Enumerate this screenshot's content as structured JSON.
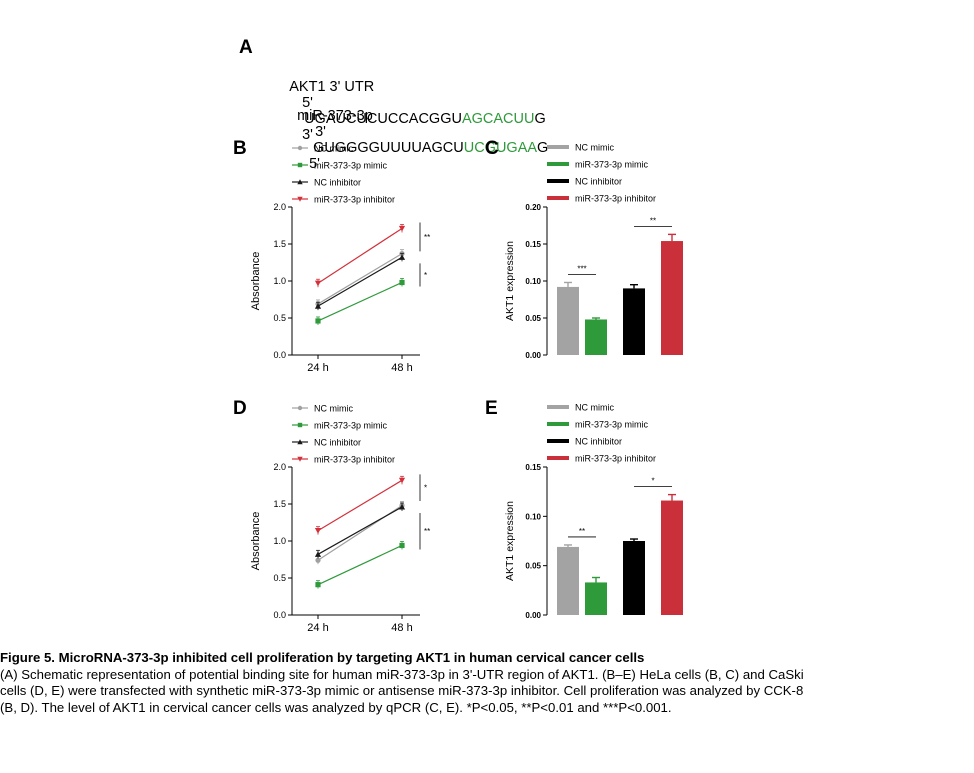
{
  "panelA": {
    "label": "A",
    "row1": {
      "name": "AKT1 3' UTR",
      "end5": "5'",
      "seq_black": "UGAUCUCUCCACGGU",
      "seq_green": "AGCACUU",
      "seq_tail": "G",
      "end3": "3'"
    },
    "row2": {
      "name": "miR-373-3p",
      "end5": "3'",
      "seq_black": "GUGGGGUUUUAGCU",
      "seq_green": "UCGUGAA",
      "seq_tail": "G",
      "end3": "5'"
    }
  },
  "legend_labels": [
    "NC mimic",
    "miR-373-3p mimic",
    "NC inhibitor",
    "miR-373-3p inhibitor"
  ],
  "colors": {
    "nc_mimic": "#a0a0a0",
    "mir_mimic": "#2e9a3a",
    "nc_inhibitor": "#1a1a1a",
    "mir_inhibitor": "#d3303a",
    "bar_nc_mimic": "#a3a3a3",
    "bar_mir_mimic": "#2e9a3a",
    "bar_nc_inhibitor": "#000000",
    "bar_mir_inhibitor": "#c9303a"
  },
  "chart_data": [
    {
      "panel": "B",
      "type": "line",
      "categories": [
        "24 h",
        "48 h"
      ],
      "ylabel": "Absorbance",
      "ylim": [
        0,
        2.0
      ],
      "yticks": [
        "0.0",
        "0.5",
        "1.0",
        "1.5",
        "2.0"
      ],
      "series": [
        {
          "name": "NC mimic",
          "values": [
            0.69,
            1.37
          ]
        },
        {
          "name": "miR-373-3p mimic",
          "values": [
            0.46,
            0.98
          ]
        },
        {
          "name": "NC inhibitor",
          "values": [
            0.66,
            1.32
          ]
        },
        {
          "name": "miR-373-3p inhibitor",
          "values": [
            0.97,
            1.71
          ]
        }
      ],
      "significance": [
        "**",
        "*"
      ]
    },
    {
      "panel": "C",
      "type": "bar",
      "categories": [
        "NC mimic",
        "miR-373-3p mimic",
        "NC inhibitor",
        "miR-373-3p inhibitor"
      ],
      "values": [
        0.092,
        0.048,
        0.09,
        0.154
      ],
      "errors": [
        0.006,
        0.002,
        0.005,
        0.009
      ],
      "ylabel": "AKT1 expression",
      "ylim": [
        0,
        0.2
      ],
      "yticks": [
        "0.00",
        "0.05",
        "0.10",
        "0.15",
        "0.20"
      ],
      "significance": [
        "***",
        "**"
      ]
    },
    {
      "panel": "D",
      "type": "line",
      "categories": [
        "24 h",
        "48 h"
      ],
      "ylabel": "Absorbance",
      "ylim": [
        0,
        2.0
      ],
      "yticks": [
        "0.0",
        "0.5",
        "1.0",
        "1.5",
        "2.0"
      ],
      "series": [
        {
          "name": "NC mimic",
          "values": [
            0.74,
            1.48
          ]
        },
        {
          "name": "miR-373-3p mimic",
          "values": [
            0.41,
            0.94
          ]
        },
        {
          "name": "NC inhibitor",
          "values": [
            0.82,
            1.46
          ]
        },
        {
          "name": "miR-373-3p inhibitor",
          "values": [
            1.14,
            1.82
          ]
        }
      ],
      "significance": [
        "*",
        "**"
      ]
    },
    {
      "panel": "E",
      "type": "bar",
      "categories": [
        "NC mimic",
        "miR-373-3p mimic",
        "NC inhibitor",
        "miR-373-3p inhibitor"
      ],
      "values": [
        0.069,
        0.033,
        0.075,
        0.116
      ],
      "errors": [
        0.002,
        0.005,
        0.002,
        0.006
      ],
      "ylabel": "AKT1 expression",
      "ylim": [
        0,
        0.15
      ],
      "yticks": [
        "0.00",
        "0.05",
        "0.10",
        "0.15"
      ],
      "significance": [
        "**",
        "*"
      ]
    }
  ],
  "caption": {
    "title": "Figure 5. MicroRNA-373-3p inhibited cell proliferation by targeting AKT1 in human cervical cancer cells",
    "line1": "(A) Schematic representation of potential binding site for human miR-373-3p in 3'-UTR region of AKT1. (B–E) HeLa cells (B, C) and CaSki",
    "line2": "cells (D, E) were transfected with synthetic miR-373-3p mimic or antisense miR-373-3p inhibitor. Cell proliferation was analyzed by CCK-8",
    "line3": "(B, D). The level of AKT1 in cervical cancer cells was analyzed by qPCR (C, E). *P<0.05, **P<0.01 and ***P<0.001."
  }
}
